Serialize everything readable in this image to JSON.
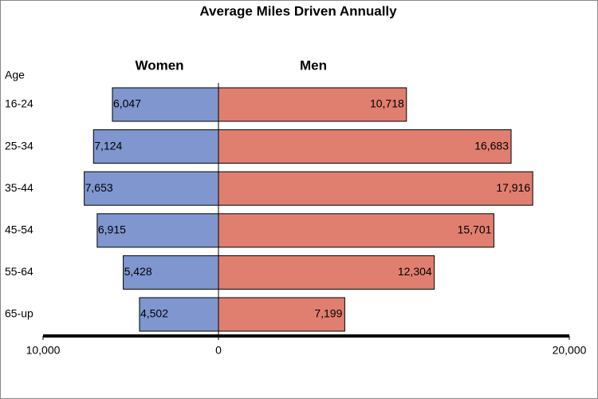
{
  "chart_data": {
    "type": "butterfly-bar",
    "title": "Average Miles Driven Annually",
    "category_label": "Age",
    "categories": [
      "16-24",
      "25-34",
      "35-44",
      "45-54",
      "55-64",
      "65-up"
    ],
    "series": [
      {
        "name": "Women",
        "color": "#7f96cf",
        "side": "left",
        "values": [
          6047,
          7124,
          7653,
          6915,
          5428,
          4502
        ],
        "value_labels": [
          "6,047",
          "7,124",
          "7,653",
          "6,915",
          "5,428",
          "4,502"
        ]
      },
      {
        "name": "Men",
        "color": "#e07f6f",
        "side": "right",
        "values": [
          10718,
          16683,
          17916,
          15701,
          12304,
          7199
        ],
        "value_labels": [
          "10,718",
          "16,683",
          "17,916",
          "15,701",
          "12,304",
          "7,199"
        ]
      }
    ],
    "xlim": [
      -10000,
      20000
    ],
    "xticks": [
      {
        "value": -10000,
        "label": "10,000"
      },
      0,
      {
        "value": 20000,
        "label": "20,000"
      }
    ]
  }
}
